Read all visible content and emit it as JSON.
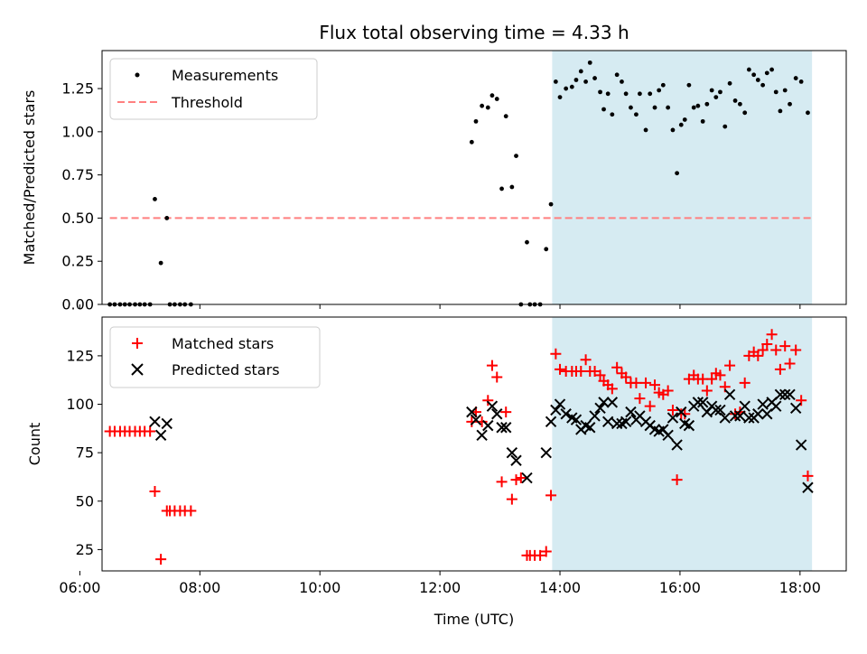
{
  "title": "Flux total observing time = 4.33 h",
  "colors": {
    "measurement": "#000000",
    "threshold": "#ff7f7f",
    "matched": "#ff0000",
    "predicted": "#000000",
    "span_fill": "#add8e6"
  },
  "chart_data": [
    {
      "type": "scatter",
      "ylabel": "Matched/Predicted stars",
      "xlim": [
        6.37,
        18.77
      ],
      "ylim": [
        0,
        1.47
      ],
      "ytick_values": [
        0,
        0.25,
        0.5,
        0.75,
        1.0,
        1.25
      ],
      "ytick_labels": [
        "0.00",
        "0.25",
        "0.50",
        "0.75",
        "1.00",
        "1.25"
      ],
      "xtick_values": [
        6,
        8,
        10,
        12,
        14,
        16,
        18
      ],
      "xtick_labels": [],
      "legend": {
        "placement": "top-left",
        "entries": [
          "Measurements",
          "Threshold"
        ]
      },
      "highlight_span": {
        "x_start": 13.87,
        "x_end": 18.2
      },
      "threshold": {
        "y": 0.5,
        "x_start": 6.5,
        "x_end": 18.2
      },
      "series": [
        {
          "name": "Measurements",
          "points": [
            [
              6.5,
              0
            ],
            [
              6.58,
              0
            ],
            [
              6.67,
              0
            ],
            [
              6.75,
              0
            ],
            [
              6.83,
              0
            ],
            [
              6.92,
              0
            ],
            [
              7.0,
              0
            ],
            [
              7.08,
              0
            ],
            [
              7.17,
              0
            ],
            [
              7.25,
              0.61
            ],
            [
              7.35,
              0.24
            ],
            [
              7.45,
              0.5
            ],
            [
              7.5,
              0
            ],
            [
              7.58,
              0
            ],
            [
              7.67,
              0
            ],
            [
              7.75,
              0
            ],
            [
              7.85,
              0
            ],
            [
              12.53,
              0.94
            ],
            [
              12.6,
              1.06
            ],
            [
              12.7,
              1.15
            ],
            [
              12.8,
              1.14
            ],
            [
              12.87,
              1.21
            ],
            [
              12.95,
              1.19
            ],
            [
              13.03,
              0.67
            ],
            [
              13.1,
              1.09
            ],
            [
              13.2,
              0.68
            ],
            [
              13.27,
              0.86
            ],
            [
              13.35,
              0
            ],
            [
              13.45,
              0.36
            ],
            [
              13.5,
              0
            ],
            [
              13.58,
              0
            ],
            [
              13.67,
              0
            ],
            [
              13.77,
              0.32
            ],
            [
              13.85,
              0.58
            ],
            [
              13.93,
              1.29
            ],
            [
              14.0,
              1.2
            ],
            [
              14.1,
              1.25
            ],
            [
              14.2,
              1.26
            ],
            [
              14.27,
              1.3
            ],
            [
              14.35,
              1.35
            ],
            [
              14.43,
              1.29
            ],
            [
              14.5,
              1.4
            ],
            [
              14.58,
              1.31
            ],
            [
              14.67,
              1.23
            ],
            [
              14.73,
              1.13
            ],
            [
              14.8,
              1.22
            ],
            [
              14.87,
              1.1
            ],
            [
              14.95,
              1.33
            ],
            [
              15.03,
              1.29
            ],
            [
              15.1,
              1.22
            ],
            [
              15.18,
              1.14
            ],
            [
              15.27,
              1.1
            ],
            [
              15.33,
              1.22
            ],
            [
              15.43,
              1.01
            ],
            [
              15.5,
              1.22
            ],
            [
              15.58,
              1.14
            ],
            [
              15.65,
              1.24
            ],
            [
              15.72,
              1.27
            ],
            [
              15.8,
              1.14
            ],
            [
              15.88,
              1.01
            ],
            [
              15.95,
              0.76
            ],
            [
              16.02,
              1.04
            ],
            [
              16.08,
              1.07
            ],
            [
              16.15,
              1.27
            ],
            [
              16.23,
              1.14
            ],
            [
              16.3,
              1.15
            ],
            [
              16.38,
              1.06
            ],
            [
              16.45,
              1.16
            ],
            [
              16.53,
              1.24
            ],
            [
              16.6,
              1.2
            ],
            [
              16.67,
              1.23
            ],
            [
              16.75,
              1.03
            ],
            [
              16.83,
              1.28
            ],
            [
              16.92,
              1.18
            ],
            [
              17.0,
              1.16
            ],
            [
              17.08,
              1.11
            ],
            [
              17.15,
              1.36
            ],
            [
              17.23,
              1.33
            ],
            [
              17.3,
              1.3
            ],
            [
              17.38,
              1.27
            ],
            [
              17.45,
              1.34
            ],
            [
              17.53,
              1.36
            ],
            [
              17.6,
              1.23
            ],
            [
              17.67,
              1.12
            ],
            [
              17.75,
              1.24
            ],
            [
              17.83,
              1.16
            ],
            [
              17.93,
              1.31
            ],
            [
              18.02,
              1.29
            ],
            [
              18.13,
              1.11
            ]
          ]
        }
      ]
    },
    {
      "type": "scatter",
      "ylabel": "Count",
      "xlabel": "Time (UTC)",
      "xlim": [
        6.37,
        18.77
      ],
      "ylim": [
        14,
        145
      ],
      "ytick_values": [
        25,
        50,
        75,
        100,
        125
      ],
      "ytick_labels": [
        "25",
        "50",
        "75",
        "100",
        "125"
      ],
      "xtick_values": [
        6,
        8,
        10,
        12,
        14,
        16,
        18
      ],
      "xtick_labels": [
        "06:00",
        "08:00",
        "10:00",
        "12:00",
        "14:00",
        "16:00",
        "18:00"
      ],
      "legend": {
        "placement": "top-left",
        "entries": [
          "Matched stars",
          "Predicted stars"
        ]
      },
      "highlight_span": {
        "x_start": 13.87,
        "x_end": 18.2
      },
      "series": [
        {
          "name": "Matched stars",
          "marker": "plus",
          "points": [
            [
              6.5,
              86
            ],
            [
              6.58,
              86
            ],
            [
              6.67,
              86
            ],
            [
              6.75,
              86
            ],
            [
              6.83,
              86
            ],
            [
              6.92,
              86
            ],
            [
              7.0,
              86
            ],
            [
              7.08,
              86
            ],
            [
              7.17,
              86
            ],
            [
              7.25,
              55
            ],
            [
              7.35,
              20
            ],
            [
              7.45,
              45
            ],
            [
              7.5,
              45
            ],
            [
              7.58,
              45
            ],
            [
              7.67,
              45
            ],
            [
              7.75,
              45
            ],
            [
              7.85,
              45
            ],
            [
              12.53,
              91
            ],
            [
              12.6,
              96
            ],
            [
              12.7,
              91
            ],
            [
              12.8,
              102
            ],
            [
              12.87,
              120
            ],
            [
              12.95,
              114
            ],
            [
              13.03,
              60
            ],
            [
              13.1,
              96
            ],
            [
              13.2,
              51
            ],
            [
              13.27,
              61
            ],
            [
              13.35,
              62
            ],
            [
              13.45,
              22
            ],
            [
              13.5,
              22
            ],
            [
              13.58,
              22
            ],
            [
              13.67,
              22
            ],
            [
              13.77,
              24
            ],
            [
              13.85,
              53
            ],
            [
              13.93,
              126
            ],
            [
              14.0,
              118
            ],
            [
              14.1,
              117
            ],
            [
              14.2,
              117
            ],
            [
              14.27,
              117
            ],
            [
              14.35,
              117
            ],
            [
              14.43,
              123
            ],
            [
              14.5,
              117
            ],
            [
              14.58,
              117
            ],
            [
              14.67,
              115
            ],
            [
              14.73,
              112
            ],
            [
              14.8,
              110
            ],
            [
              14.87,
              108
            ],
            [
              14.95,
              119
            ],
            [
              15.03,
              116
            ],
            [
              15.1,
              114
            ],
            [
              15.18,
              111
            ],
            [
              15.27,
              111
            ],
            [
              15.33,
              103
            ],
            [
              15.43,
              111
            ],
            [
              15.5,
              99
            ],
            [
              15.58,
              110
            ],
            [
              15.65,
              106
            ],
            [
              15.72,
              105
            ],
            [
              15.8,
              107
            ],
            [
              15.88,
              97
            ],
            [
              15.95,
              61
            ],
            [
              16.02,
              95
            ],
            [
              16.08,
              95
            ],
            [
              16.15,
              113
            ],
            [
              16.23,
              115
            ],
            [
              16.3,
              113
            ],
            [
              16.38,
              113
            ],
            [
              16.45,
              107
            ],
            [
              16.53,
              113
            ],
            [
              16.6,
              116
            ],
            [
              16.67,
              115
            ],
            [
              16.75,
              109
            ],
            [
              16.83,
              120
            ],
            [
              16.92,
              95
            ],
            [
              17.0,
              96
            ],
            [
              17.08,
              111
            ],
            [
              17.15,
              125
            ],
            [
              17.23,
              127
            ],
            [
              17.3,
              125
            ],
            [
              17.38,
              128
            ],
            [
              17.45,
              131
            ],
            [
              17.53,
              136
            ],
            [
              17.6,
              128
            ],
            [
              17.67,
              118
            ],
            [
              17.75,
              130
            ],
            [
              17.83,
              121
            ],
            [
              17.93,
              128
            ],
            [
              18.02,
              102
            ],
            [
              18.13,
              63
            ]
          ]
        },
        {
          "name": "Predicted stars",
          "marker": "x",
          "points": [
            [
              7.25,
              91
            ],
            [
              7.35,
              84
            ],
            [
              7.45,
              90
            ],
            [
              12.53,
              96
            ],
            [
              12.6,
              92
            ],
            [
              12.7,
              84
            ],
            [
              12.8,
              89
            ],
            [
              12.87,
              99
            ],
            [
              12.95,
              95
            ],
            [
              13.03,
              88
            ],
            [
              13.1,
              88
            ],
            [
              13.2,
              75
            ],
            [
              13.27,
              71
            ],
            [
              13.45,
              62
            ],
            [
              13.77,
              75
            ],
            [
              13.85,
              91
            ],
            [
              13.93,
              97
            ],
            [
              14.0,
              100
            ],
            [
              14.1,
              95
            ],
            [
              14.2,
              93
            ],
            [
              14.27,
              92
            ],
            [
              14.35,
              87
            ],
            [
              14.43,
              89
            ],
            [
              14.5,
              88
            ],
            [
              14.58,
              94
            ],
            [
              14.67,
              98
            ],
            [
              14.73,
              101
            ],
            [
              14.8,
              91
            ],
            [
              14.87,
              101
            ],
            [
              14.95,
              90
            ],
            [
              15.03,
              90
            ],
            [
              15.1,
              91
            ],
            [
              15.18,
              96
            ],
            [
              15.27,
              92
            ],
            [
              15.33,
              94
            ],
            [
              15.43,
              91
            ],
            [
              15.5,
              89
            ],
            [
              15.58,
              87
            ],
            [
              15.65,
              86
            ],
            [
              15.72,
              87
            ],
            [
              15.8,
              84
            ],
            [
              15.88,
              93
            ],
            [
              15.95,
              79
            ],
            [
              16.02,
              96
            ],
            [
              16.08,
              90
            ],
            [
              16.15,
              89
            ],
            [
              16.23,
              99
            ],
            [
              16.3,
              101
            ],
            [
              16.38,
              101
            ],
            [
              16.45,
              96
            ],
            [
              16.53,
              99
            ],
            [
              16.6,
              97
            ],
            [
              16.67,
              97
            ],
            [
              16.75,
              93
            ],
            [
              16.83,
              105
            ],
            [
              16.92,
              94
            ],
            [
              17.0,
              94
            ],
            [
              17.08,
              99
            ],
            [
              17.15,
              93
            ],
            [
              17.23,
              93
            ],
            [
              17.3,
              95
            ],
            [
              17.38,
              100
            ],
            [
              17.45,
              95
            ],
            [
              17.53,
              101
            ],
            [
              17.6,
              99
            ],
            [
              17.67,
              105
            ],
            [
              17.75,
              105
            ],
            [
              17.83,
              105
            ],
            [
              17.93,
              98
            ],
            [
              18.02,
              79
            ],
            [
              18.13,
              57
            ]
          ]
        }
      ]
    }
  ]
}
